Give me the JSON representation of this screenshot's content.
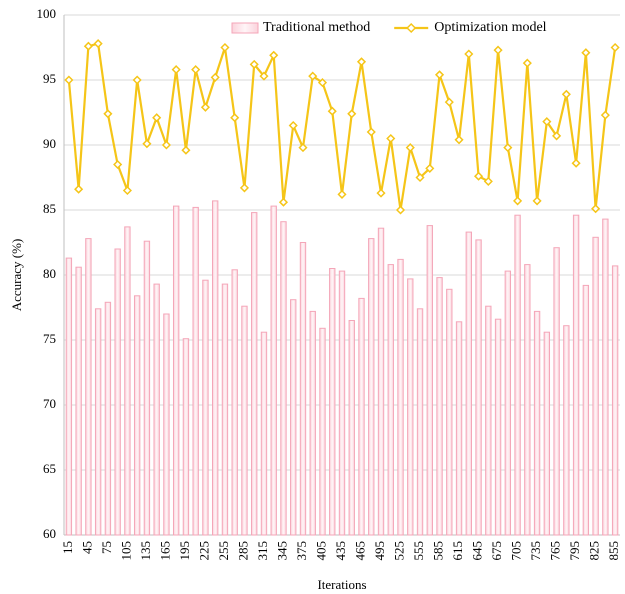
{
  "chart_data": {
    "type": "bar_line",
    "xlabel": "Iterations",
    "ylabel": "Accuracy (%)",
    "categories": [
      15,
      null,
      45,
      null,
      75,
      null,
      105,
      null,
      135,
      null,
      165,
      null,
      195,
      null,
      225,
      null,
      255,
      null,
      285,
      null,
      315,
      null,
      345,
      null,
      375,
      null,
      405,
      null,
      435,
      null,
      465,
      null,
      495,
      null,
      525,
      null,
      555,
      null,
      585,
      null,
      615,
      null,
      645,
      null,
      675,
      null,
      705,
      null,
      735,
      null,
      765,
      null,
      795,
      null,
      825,
      null,
      855
    ],
    "series": [
      {
        "name": "Traditional method",
        "type": "bar",
        "color": "#f4a6b8",
        "values": [
          81.3,
          80.6,
          82.8,
          77.4,
          77.9,
          82.0,
          83.7,
          78.4,
          82.6,
          79.3,
          77.0,
          85.3,
          75.1,
          85.2,
          79.6,
          85.7,
          79.3,
          80.4,
          77.6,
          84.8,
          75.6,
          85.3,
          84.1,
          78.1,
          82.5,
          77.2,
          75.9,
          80.5,
          80.3,
          76.5,
          78.2,
          82.8,
          83.6,
          80.8,
          81.2,
          79.7,
          77.4,
          83.8,
          79.8,
          78.9,
          76.4,
          83.3,
          82.7,
          77.6,
          76.6,
          80.3,
          84.6,
          80.8,
          77.2,
          75.6,
          82.1,
          76.1,
          84.6,
          79.2,
          82.9,
          84.3,
          80.7
        ]
      },
      {
        "name": "Optimization model",
        "type": "line",
        "color": "#f5c518",
        "values": [
          95.0,
          86.6,
          97.6,
          97.8,
          92.4,
          88.5,
          86.5,
          95.0,
          90.1,
          92.1,
          90.0,
          95.8,
          89.6,
          95.8,
          92.9,
          95.2,
          97.5,
          92.1,
          86.7,
          96.2,
          95.3,
          96.9,
          85.6,
          91.5,
          89.8,
          95.3,
          94.8,
          92.6,
          86.2,
          92.4,
          96.4,
          91.0,
          86.3,
          90.5,
          85.0,
          89.8,
          87.5,
          88.2,
          95.4,
          93.3,
          90.4,
          97.0,
          87.6,
          87.2,
          97.3,
          89.8,
          85.7,
          96.3,
          85.7,
          91.8,
          90.7,
          93.9,
          88.6,
          97.1,
          85.1,
          92.3,
          97.5
        ]
      }
    ],
    "ylim": [
      60,
      100
    ],
    "yticks": [
      60,
      65,
      70,
      75,
      80,
      85,
      90,
      95,
      100
    ],
    "grid": true,
    "legend": "top-right"
  }
}
